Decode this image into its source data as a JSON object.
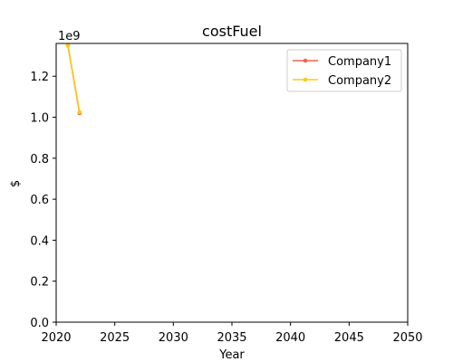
{
  "chart_data": {
    "type": "line",
    "title": "costFuel",
    "xlabel": "Year",
    "ylabel": "$",
    "y_scale_label": "1e9",
    "xlim": [
      2020,
      2050
    ],
    "ylim": [
      0,
      1.36
    ],
    "x_ticks": [
      2020,
      2025,
      2030,
      2035,
      2040,
      2045,
      2050
    ],
    "y_ticks": [
      0.0,
      0.2,
      0.4,
      0.6,
      0.8,
      1.0,
      1.2
    ],
    "y_tick_labels": [
      "0.0",
      "0.2",
      "0.4",
      "0.6",
      "0.8",
      "1.0",
      "1.2"
    ],
    "grid": false,
    "legend_position": "top-right",
    "series": [
      {
        "name": "Company1",
        "color": "#f4614a",
        "x": [
          2021,
          2022
        ],
        "y": [
          1.35,
          1.02
        ]
      },
      {
        "name": "Company2",
        "color": "#f9cb16",
        "x": [
          2021,
          2022
        ],
        "y": [
          1.35,
          1.025
        ]
      }
    ]
  }
}
